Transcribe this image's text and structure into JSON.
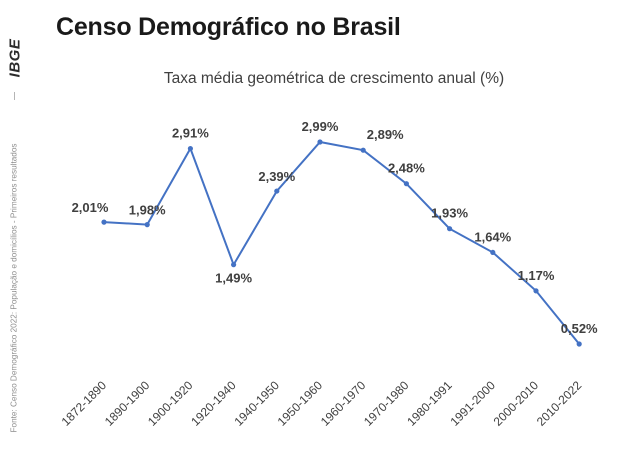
{
  "brand": {
    "logo_text": "IBGE"
  },
  "source_note": "Fonte: Censo Demográfico 2022: População e domicílios - Primeiros resultados",
  "colors": {
    "line": "#4472c4",
    "marker": "#4472c4",
    "text": "#404040"
  },
  "chart_data": {
    "type": "line",
    "title": "Censo Demográfico no Brasil",
    "subtitle": "Taxa média geométrica de crescimento anual (%)",
    "categories": [
      "1872-1890",
      "1890-1900",
      "1900-1920",
      "1920-1940",
      "1940-1950",
      "1950-1960",
      "1960-1970",
      "1970-1980",
      "1980-1991",
      "1991-2000",
      "2000-2010",
      "2010-2022"
    ],
    "series": [
      {
        "values": [
          2.01,
          1.98,
          2.91,
          1.49,
          2.39,
          2.99,
          2.89,
          2.48,
          1.93,
          1.64,
          1.17,
          0.52
        ]
      }
    ],
    "data_labels": [
      "2,01%",
      "1,98%",
      "2,91%",
      "1,49%",
      "2,39%",
      "2,99%",
      "2,89%",
      "2,48%",
      "1,93%",
      "1,64%",
      "1,17%",
      "0,52%"
    ],
    "grid": false,
    "legend": "none"
  }
}
